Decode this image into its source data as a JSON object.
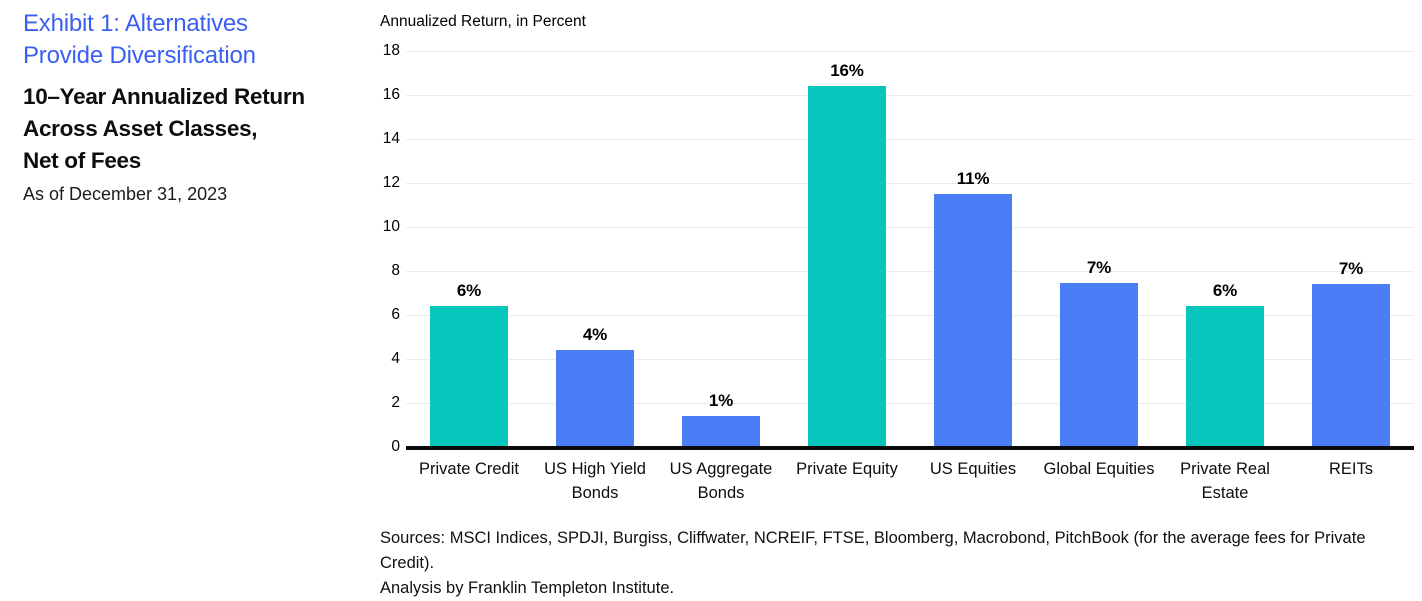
{
  "colors": {
    "title_blue": "#3a5ff3",
    "teal": "#06c6bd",
    "blue": "#4a7df6",
    "axis_black": "#0a0a0a",
    "gridline_gray": "#ebebeb"
  },
  "left_panel": {
    "exhibit_title": "Exhibit 1: Alternatives Provide Diversification",
    "exhibit_title_lines": [
      "Exhibit 1: Alternatives",
      "Provide Diversification"
    ],
    "subtitle": "10–Year Annualized Return Across Asset Classes, Net of Fees",
    "subtitle_lines": [
      "10–Year Annualized Return",
      "Across Asset Classes,",
      "Net of Fees"
    ],
    "as_of": "As of December 31, 2023"
  },
  "chart_data": {
    "type": "bar",
    "axis_title": "Annualized Return, in Percent",
    "categories": [
      "Private Credit",
      "US High Yield Bonds",
      "US Aggregate Bonds",
      "Private Equity",
      "US Equities",
      "Global Equities",
      "Private Real Estate",
      "REITs"
    ],
    "values": [
      6,
      4,
      1,
      16,
      11,
      7,
      6,
      7
    ],
    "value_labels": [
      "6%",
      "4%",
      "1%",
      "16%",
      "11%",
      "7%",
      "6%",
      "7%"
    ],
    "bar_heights": [
      6.4,
      4.4,
      1.4,
      16.4,
      11.5,
      7.45,
      6.4,
      7.4
    ],
    "bar_colors": [
      "teal",
      "blue",
      "blue",
      "teal",
      "blue",
      "blue",
      "teal",
      "blue"
    ],
    "yticks": [
      0,
      2,
      4,
      6,
      8,
      10,
      12,
      14,
      16,
      18
    ],
    "ylim": [
      0,
      18
    ],
    "grid": true,
    "legend": "none"
  },
  "footer": {
    "sources_line1": "Sources: MSCI Indices, SPDJI, Burgiss, Cliffwater, NCREIF, FTSE, Bloomberg, Macrobond, PitchBook (for the average fees for Private Credit).",
    "sources_line2": "Analysis by Franklin Templeton Institute."
  }
}
